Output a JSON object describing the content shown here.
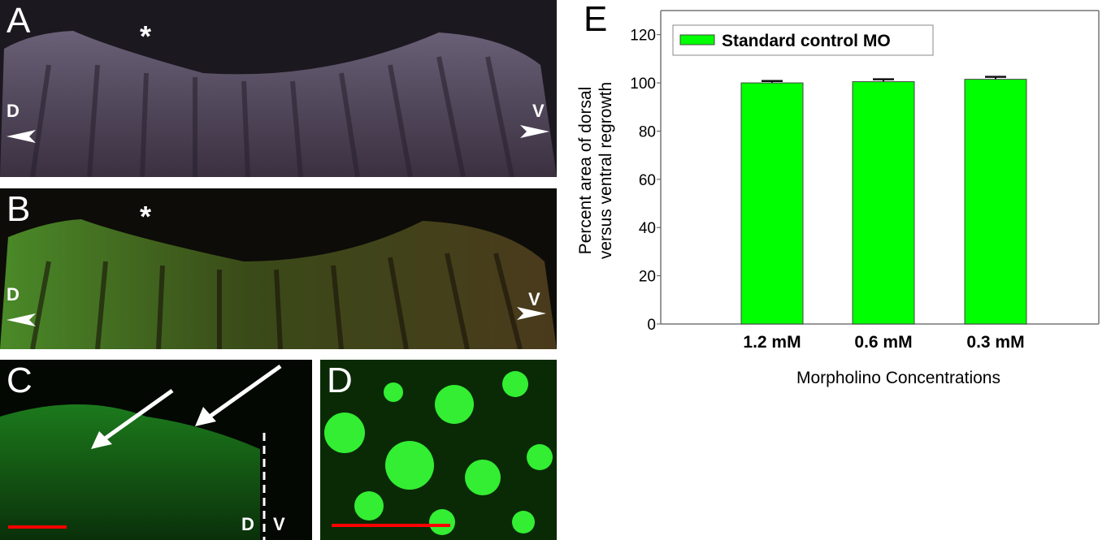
{
  "panels": {
    "A": {
      "label": "A",
      "asterisk": "*",
      "dorsal": "D",
      "ventral": "V"
    },
    "B": {
      "label": "B",
      "asterisk": "*",
      "dorsal": "D",
      "ventral": "V"
    },
    "C": {
      "label": "C",
      "dorsal": "D",
      "ventral": "V"
    },
    "D": {
      "label": "D"
    }
  },
  "colors": {
    "bar": "#00ff00",
    "scale_bar": "#ff0000",
    "fluorescence": "#22dd22"
  },
  "chart_data": {
    "panel_label": "E",
    "type": "bar",
    "categories": [
      "1.2 mM",
      "0.6 mM",
      "0.3 mM"
    ],
    "series": [
      {
        "name": "Standard control MO",
        "values": [
          100.0,
          100.5,
          101.5
        ],
        "errors": [
          0.8,
          1.0,
          1.0
        ]
      }
    ],
    "xlabel": "Morpholino Concentrations",
    "ylabel_lines": [
      "Percent area of dorsal",
      "versus ventral regrowth"
    ],
    "ylim": [
      0,
      130
    ],
    "yticks": [
      "0",
      "20",
      "40",
      "60",
      "80",
      "100",
      "120"
    ],
    "legend": "top-left",
    "grid": false
  }
}
